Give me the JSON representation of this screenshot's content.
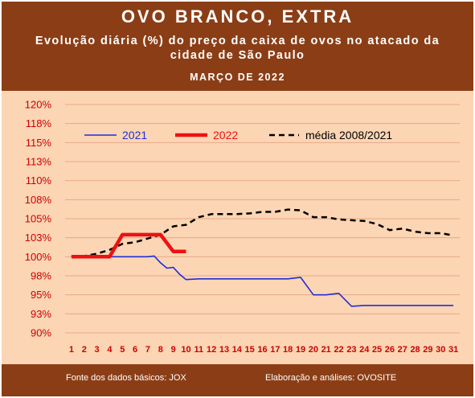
{
  "header": {
    "title": "OVO BRANCO, EXTRA",
    "subtitle": "Evolução diária (%) do preço da caixa de ovos no atacado da cidade de São Paulo",
    "period": "MARÇO DE 2022"
  },
  "footer": {
    "source": "Fonte dos dados básicos: JOX",
    "credit": "Elaboração e análises: OVOSITE"
  },
  "colors": {
    "header_bg": "#8b3e16",
    "plot_bg": "#fcd5b4",
    "series_2021": "#1f2fd6",
    "series_2022": "#ee1111",
    "series_avg": "#000000",
    "tick_text": "#cc0000"
  },
  "chart_data": {
    "type": "line",
    "ylim": [
      90,
      120
    ],
    "y_ticks": [
      "90%",
      "93%",
      "95%",
      "98%",
      "100%",
      "103%",
      "105%",
      "108%",
      "110%",
      "113%",
      "115%",
      "118%",
      "120%"
    ],
    "x": [
      1,
      2,
      3,
      4,
      5,
      6,
      7,
      8,
      9,
      10,
      11,
      12,
      13,
      14,
      15,
      16,
      17,
      18,
      19,
      20,
      21,
      22,
      23,
      24,
      25,
      26,
      27,
      28,
      29,
      30,
      31
    ],
    "x_ticks": [
      "1",
      "2",
      "3",
      "4",
      "5",
      "6",
      "7",
      "8",
      "9",
      "10",
      "11",
      "12",
      "13",
      "14",
      "15",
      "16",
      "17",
      "18",
      "19",
      "20",
      "21",
      "22",
      "23",
      "24",
      "25",
      "26",
      "27",
      "28",
      "29",
      "30",
      "31"
    ],
    "grid": "horizontal",
    "legend_placement": "top",
    "series": [
      {
        "name": "2021",
        "color": "#1f2fd6",
        "style": "solid-thin",
        "points": [
          [
            1,
            100
          ],
          [
            2,
            100
          ],
          [
            3,
            100
          ],
          [
            4,
            100
          ],
          [
            5,
            100
          ],
          [
            6,
            100
          ],
          [
            7,
            100
          ],
          [
            7.5,
            100.1
          ],
          [
            8,
            99.2
          ],
          [
            8.5,
            98.5
          ],
          [
            9,
            98.6
          ],
          [
            9.5,
            97.7
          ],
          [
            10,
            97.0
          ],
          [
            11,
            97.1
          ],
          [
            12,
            97.1
          ],
          [
            13,
            97.1
          ],
          [
            14,
            97.1
          ],
          [
            15,
            97.1
          ],
          [
            16,
            97.1
          ],
          [
            17,
            97.1
          ],
          [
            18,
            97.1
          ],
          [
            19,
            97.3
          ],
          [
            20,
            95.0
          ],
          [
            21,
            95.0
          ],
          [
            22,
            95.2
          ],
          [
            23,
            93.5
          ],
          [
            24,
            93.6
          ],
          [
            25,
            93.6
          ],
          [
            26,
            93.6
          ],
          [
            27,
            93.6
          ],
          [
            28,
            93.6
          ],
          [
            29,
            93.6
          ],
          [
            30,
            93.6
          ],
          [
            31,
            93.6
          ]
        ]
      },
      {
        "name": "2022",
        "color": "#ee1111",
        "style": "solid-thick",
        "points": [
          [
            1,
            100
          ],
          [
            2,
            100
          ],
          [
            3,
            100
          ],
          [
            4,
            100
          ],
          [
            5,
            102.9
          ],
          [
            6,
            102.9
          ],
          [
            7,
            102.9
          ],
          [
            8,
            102.9
          ],
          [
            9,
            100.7
          ],
          [
            10,
            100.7
          ]
        ]
      },
      {
        "name": "média 2008/2021",
        "color": "#000000",
        "style": "dashed",
        "points": [
          [
            1,
            100
          ],
          [
            2,
            100.1
          ],
          [
            3,
            100.4
          ],
          [
            4,
            100.9
          ],
          [
            5,
            101.7
          ],
          [
            6,
            101.9
          ],
          [
            7,
            102.4
          ],
          [
            8,
            102.9
          ],
          [
            9,
            104.0
          ],
          [
            10,
            104.2
          ],
          [
            11,
            105.2
          ],
          [
            12,
            105.6
          ],
          [
            13,
            105.6
          ],
          [
            14,
            105.6
          ],
          [
            15,
            105.7
          ],
          [
            16,
            105.9
          ],
          [
            17,
            105.9
          ],
          [
            18,
            106.2
          ],
          [
            19,
            106.1
          ],
          [
            20,
            105.2
          ],
          [
            21,
            105.2
          ],
          [
            22,
            104.9
          ],
          [
            23,
            104.8
          ],
          [
            24,
            104.7
          ],
          [
            25,
            104.3
          ],
          [
            26,
            103.5
          ],
          [
            27,
            103.7
          ],
          [
            28,
            103.3
          ],
          [
            29,
            103.1
          ],
          [
            30,
            103.1
          ],
          [
            31,
            102.8
          ]
        ]
      }
    ]
  }
}
